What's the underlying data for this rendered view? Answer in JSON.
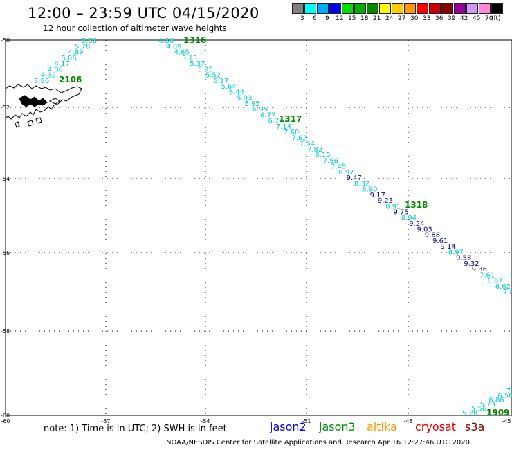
{
  "title": "12:00 – 23:59 UTC 04/15/2020",
  "subtitle": "12 hour collection of altimeter wave heights",
  "legend": {
    "colors": [
      "#808080",
      "#00ffff",
      "#00aaff",
      "#0000ee",
      "#00dd00",
      "#00b000",
      "#008800",
      "#ffff00",
      "#ffcc00",
      "#ff9900",
      "#ff0000",
      "#cc0000",
      "#880000",
      "#990099",
      "#cc99ff",
      "#ff88dd",
      "#000000"
    ],
    "labels": [
      "3",
      "6",
      "9",
      "12",
      "15",
      "18",
      "21",
      "24",
      "27",
      "30",
      "33",
      "36",
      "39",
      "42",
      "45",
      "70"
    ],
    "unit": "(ft)"
  },
  "axes": {
    "x_labels": [
      "-60",
      "-57",
      "-54",
      "-51",
      "-48",
      "-45"
    ],
    "y_labels": [
      "-50",
      "-52",
      "-54",
      "-56",
      "-58",
      "-60"
    ]
  },
  "tracks": [
    {
      "id": "2106",
      "color": "#00cccc",
      "values": [
        "3.90",
        "4.32",
        "4.06",
        "4.17",
        "5.06",
        "4.89",
        "5.78",
        "5.38"
      ]
    },
    {
      "id": "1316",
      "color": "mixed",
      "values": [
        {
          "v": "4.86",
          "c": "#00cccc"
        },
        {
          "v": "4.09",
          "c": "#00cccc"
        },
        {
          "v": "4.65",
          "c": "#00cccc"
        },
        {
          "v": "5.15",
          "c": "#00cccc"
        },
        {
          "v": "5.37",
          "c": "#00cccc"
        },
        {
          "v": "5.35",
          "c": "#00cccc"
        },
        {
          "v": "5.52",
          "c": "#00cccc"
        },
        {
          "v": "6.17",
          "c": "#00cccc"
        },
        {
          "v": "5.64",
          "c": "#00cccc"
        },
        {
          "v": "6.44",
          "c": "#00cccc"
        },
        {
          "v": "5.93",
          "c": "#00cccc"
        },
        {
          "v": "5.95",
          "c": "#00cccc"
        },
        {
          "v": "6.95",
          "c": "#00cccc"
        },
        {
          "v": "6.77",
          "c": "#00cccc"
        },
        {
          "v": "6.74",
          "c": "#00cccc"
        },
        {
          "v": "7.14",
          "c": "#00cccc"
        },
        {
          "v": "7.60",
          "c": "#00cccc"
        },
        {
          "v": "7.62",
          "c": "#00cccc"
        },
        {
          "v": "7.64",
          "c": "#00cccc"
        },
        {
          "v": "7.82",
          "c": "#00cccc"
        },
        {
          "v": "8.15",
          "c": "#00cccc"
        },
        {
          "v": "7.56",
          "c": "#00cccc"
        },
        {
          "v": "7.45",
          "c": "#00cccc"
        },
        {
          "v": "8.97",
          "c": "#00cccc"
        },
        {
          "v": "9.47",
          "c": "#00008b"
        },
        {
          "v": "8.32",
          "c": "#00cccc"
        },
        {
          "v": "8.90",
          "c": "#00cccc"
        },
        {
          "v": "9.17",
          "c": "#00008b"
        },
        {
          "v": "9.23",
          "c": "#00008b"
        },
        {
          "v": "8.91",
          "c": "#00cccc"
        },
        {
          "v": "9.75",
          "c": "#00008b"
        },
        {
          "v": "8.94",
          "c": "#00cccc"
        },
        {
          "v": "9.24",
          "c": "#00008b"
        },
        {
          "v": "9.03",
          "c": "#00008b"
        },
        {
          "v": "9.88",
          "c": "#00008b"
        },
        {
          "v": "9.61",
          "c": "#00008b"
        },
        {
          "v": "9.14",
          "c": "#00008b"
        },
        {
          "v": "8.97",
          "c": "#00cccc"
        },
        {
          "v": "9.58",
          "c": "#00008b"
        },
        {
          "v": "9.32",
          "c": "#00008b"
        },
        {
          "v": "9.36",
          "c": "#00008b"
        },
        {
          "v": "7.61",
          "c": "#00cccc"
        },
        {
          "v": "6.67",
          "c": "#00cccc"
        },
        {
          "v": "6.62",
          "c": "#00cccc"
        },
        {
          "v": "7.8",
          "c": "#00cccc"
        }
      ]
    },
    {
      "id": "1909",
      "color": "#00cccc",
      "values": [
        "5.28",
        "5.56",
        "5.73",
        "6.86",
        "6.56",
        "7."
      ]
    }
  ],
  "track_labels": [
    "1316",
    "2106",
    "1317",
    "1318",
    "1909"
  ],
  "footer": {
    "note": "note: 1) Time is in UTC; 2) SWH is in feet",
    "satellites": [
      {
        "name": "jason2",
        "color": "#0000dd"
      },
      {
        "name": "jason3",
        "color": "#008800"
      },
      {
        "name": "altika",
        "color": "#ff9900"
      },
      {
        "name": "cryosat",
        "color": "#dd0000"
      },
      {
        "name": "s3a",
        "color": "#880000"
      }
    ],
    "credit": "NOAA/NESDIS Center for Satellite Applications and Research    Apr 16 12:27:46 UTC 2020"
  }
}
